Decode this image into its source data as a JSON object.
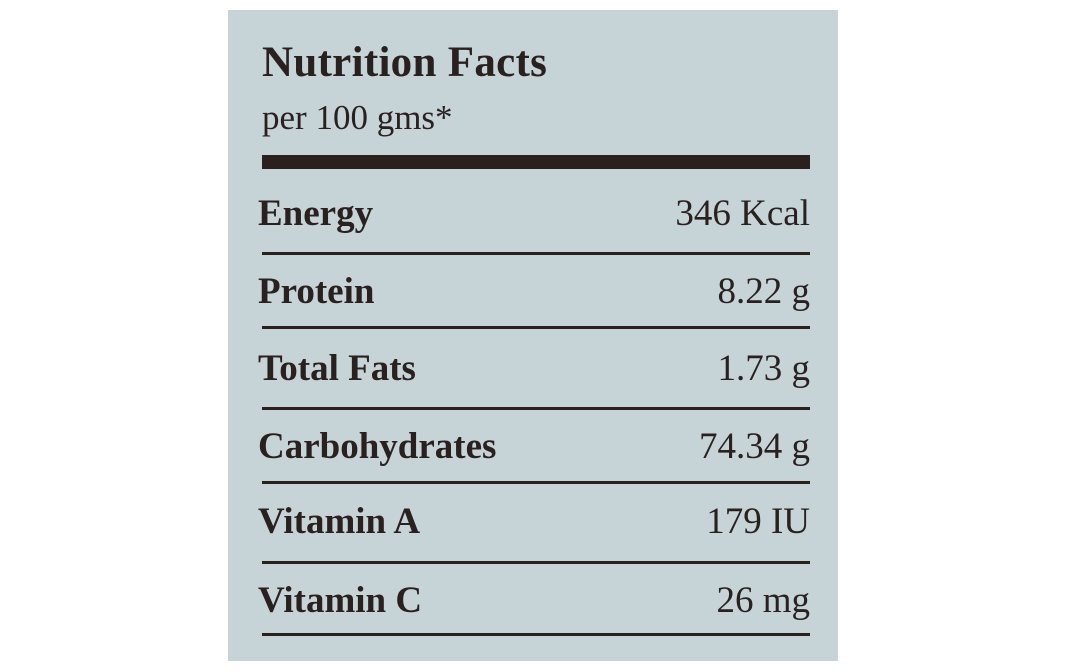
{
  "header": {
    "title": "Nutrition Facts",
    "subtitle": "per 100 gms*"
  },
  "rows": [
    {
      "name": "Energy",
      "value": "346 Kcal"
    },
    {
      "name": "Protein",
      "value": "8.22 g"
    },
    {
      "name": "Total Fats",
      "value": "1.73 g"
    },
    {
      "name": "Carbohydrates",
      "value": "74.34 g"
    },
    {
      "name": "Vitamin A",
      "value": "179 IU"
    },
    {
      "name": "Vitamin C",
      "value": "26 mg"
    }
  ]
}
